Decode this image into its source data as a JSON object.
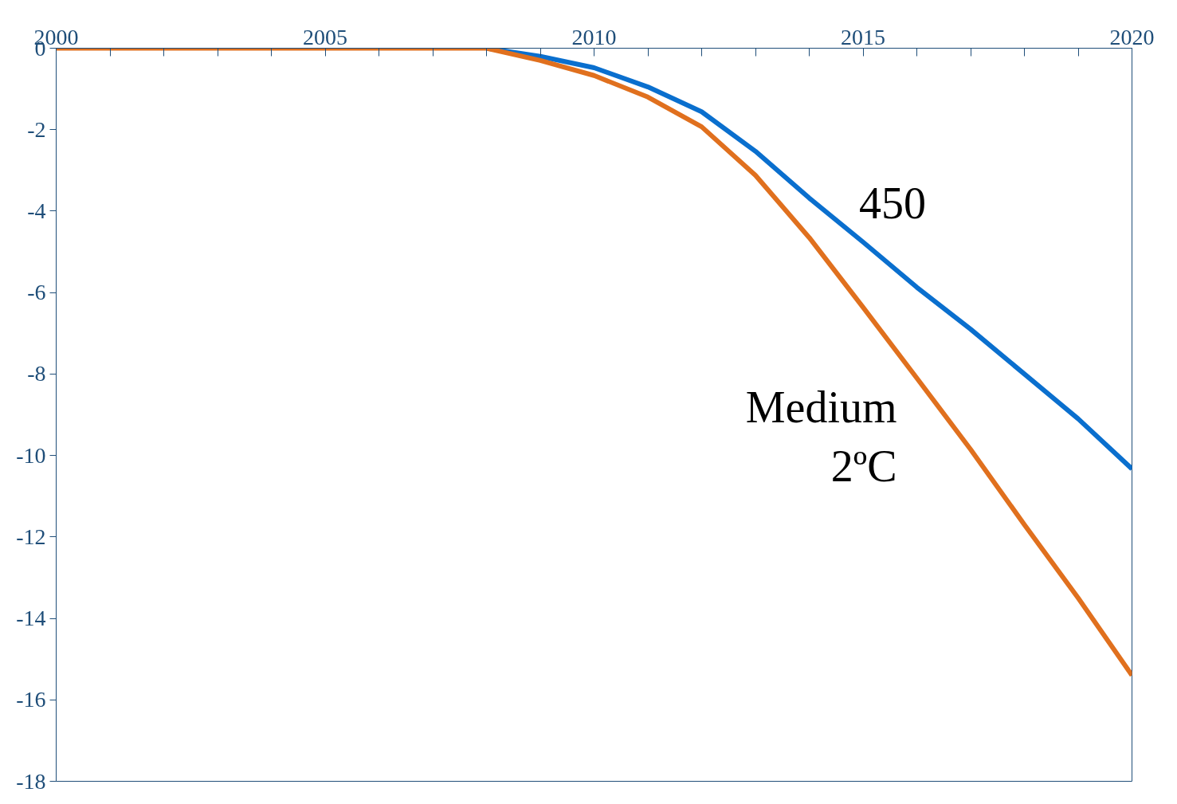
{
  "chart_data": {
    "type": "line",
    "x": [
      2000,
      2001,
      2002,
      2003,
      2004,
      2005,
      2006,
      2007,
      2008,
      2009,
      2010,
      2011,
      2012,
      2013,
      2014,
      2015,
      2016,
      2017,
      2018,
      2019,
      2020
    ],
    "series": [
      {
        "name": "450",
        "color": "#0a6fce",
        "x": [
          2008,
          2009,
          2010,
          2011,
          2012,
          2013,
          2014,
          2015,
          2016,
          2017,
          2018,
          2019,
          2020
        ],
        "values": [
          0,
          -0.2,
          -0.48,
          -0.95,
          -1.56,
          -2.53,
          -3.68,
          -4.76,
          -5.87,
          -6.9,
          -8.0,
          -9.1,
          -10.33
        ]
      },
      {
        "name": "Medium\n2ºC",
        "color": "#e0701e",
        "values": [
          0,
          0,
          0,
          0,
          0,
          0,
          0,
          0,
          0,
          -0.3,
          -0.67,
          -1.2,
          -1.93,
          -3.12,
          -4.65,
          -6.36,
          -8.1,
          -9.85,
          -11.7,
          -13.5,
          -15.4
        ]
      }
    ],
    "xlim": [
      2000,
      2020
    ],
    "ylim": [
      -18,
      0
    ],
    "xticks": [
      2000,
      {
        "value": 2001,
        "label": null
      },
      {
        "value": 2002,
        "label": null
      },
      {
        "value": 2003,
        "label": null
      },
      {
        "value": 2004,
        "label": null
      },
      2005,
      {
        "value": 2006,
        "label": null
      },
      {
        "value": 2007,
        "label": null
      },
      {
        "value": 2008,
        "label": null
      },
      {
        "value": 2009,
        "label": null
      },
      2010,
      {
        "value": 2011,
        "label": null
      },
      {
        "value": 2012,
        "label": null
      },
      {
        "value": 2013,
        "label": null
      },
      {
        "value": 2014,
        "label": null
      },
      2015,
      {
        "value": 2016,
        "label": null
      },
      {
        "value": 2017,
        "label": null
      },
      {
        "value": 2018,
        "label": null
      },
      {
        "value": 2019,
        "label": null
      },
      2020
    ],
    "yticks": [
      0,
      -2,
      -4,
      -6,
      -8,
      -10,
      -12,
      -14,
      -16,
      -18
    ],
    "grid": false,
    "legend": false,
    "marker": "none",
    "line_style": "solid"
  }
}
